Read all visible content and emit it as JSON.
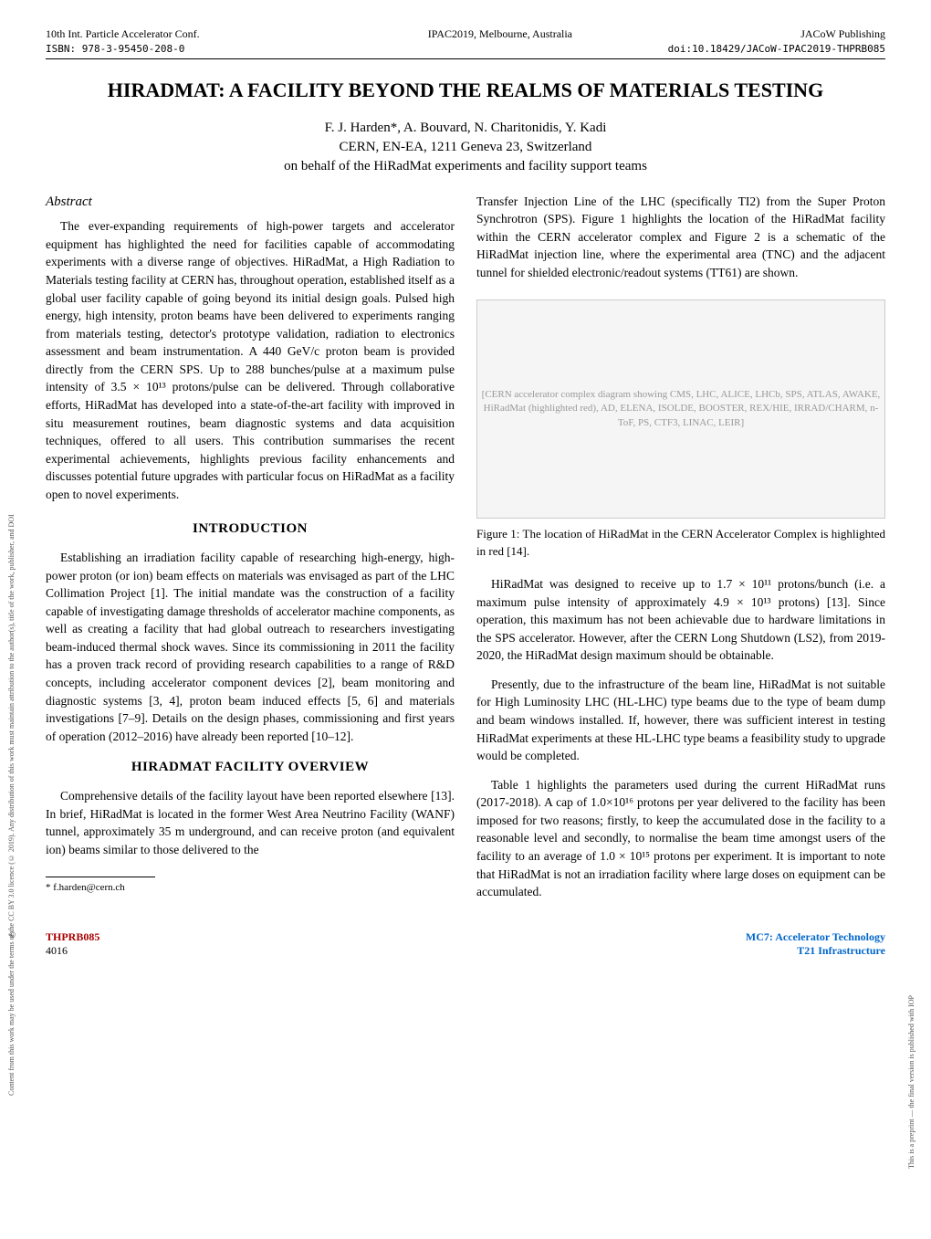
{
  "header": {
    "conf_left": "10th Int. Particle Accelerator Conf.",
    "conf_center": "IPAC2019, Melbourne, Australia",
    "conf_right": "JACoW Publishing",
    "isbn": "ISBN: 978-3-95450-208-0",
    "doi": "doi:10.18429/JACoW-IPAC2019-THPRB085"
  },
  "title": "HIRADMAT: A FACILITY BEYOND THE REALMS OF MATERIALS TESTING",
  "authors": "F. J. Harden*, A. Bouvard, N. Charitonidis, Y. Kadi",
  "affiliation": "CERN, EN-EA, 1211 Geneva 23, Switzerland",
  "behalf": "on behalf of the HiRadMat experiments and facility support teams",
  "abstract_heading": "Abstract",
  "abstract_text": "The ever-expanding requirements of high-power targets and accelerator equipment has highlighted the need for facilities capable of accommodating experiments with a diverse range of objectives. HiRadMat, a High Radiation to Materials testing facility at CERN has, throughout operation, established itself as a global user facility capable of going beyond its initial design goals. Pulsed high energy, high intensity, proton beams have been delivered to experiments ranging from materials testing, detector's prototype validation, radiation to electronics assessment and beam instrumentation. A 440 GeV/c proton beam is provided directly from the CERN SPS. Up to 288 bunches/pulse at a maximum pulse intensity of 3.5 × 10¹³ protons/pulse can be delivered. Through collaborative efforts, HiRadMat has developed into a state-of-the-art facility with improved in situ measurement routines, beam diagnostic systems and data acquisition techniques, offered to all users. This contribution summarises the recent experimental achievements, highlights previous facility enhancements and discusses potential future upgrades with particular focus on HiRadMat as a facility open to novel experiments.",
  "sections": {
    "intro_heading": "INTRODUCTION",
    "intro_p1": "Establishing an irradiation facility capable of researching high-energy, high-power proton (or ion) beam effects on materials was envisaged as part of the LHC Collimation Project [1]. The initial mandate was the construction of a facility capable of investigating damage thresholds of accelerator machine components, as well as creating a facility that had global outreach to researchers investigating beam-induced thermal shock waves. Since its commissioning in 2011 the facility has a proven track record of providing research capabilities to a range of R&D concepts, including accelerator component devices [2], beam monitoring and diagnostic systems [3, 4], proton beam induced effects [5, 6] and materials investigations [7–9]. Details on the design phases, commissioning and first years of operation (2012–2016) have already been reported [10–12].",
    "overview_heading": "HIRADMAT FACILITY OVERVIEW",
    "overview_p1": "Comprehensive details of the facility layout have been reported elsewhere [13]. In brief, HiRadMat is located in the former West Area Neutrino Facility (WANF) tunnel, approximately 35 m underground, and can receive proton (and equivalent ion) beams similar to those delivered to the",
    "right_p1": "Transfer Injection Line of the LHC (specifically TI2) from the Super Proton Synchrotron (SPS). Figure 1 highlights the location of the HiRadMat facility within the CERN accelerator complex and Figure 2 is a schematic of the HiRadMat injection line, where the experimental area (TNC) and the adjacent tunnel for shielded electronic/readout systems (TT61) are shown.",
    "fig1_caption": "Figure 1: The location of HiRadMat in the CERN Accelerator Complex is highlighted in red [14].",
    "right_p2": "HiRadMat was designed to receive up to 1.7 × 10¹¹ protons/bunch (i.e. a maximum pulse intensity of approximately 4.9 × 10¹³ protons) [13]. Since operation, this maximum has not been achievable due to hardware limitations in the SPS accelerator. However, after the CERN Long Shutdown (LS2), from 2019-2020, the HiRadMat design maximum should be obtainable.",
    "right_p3": "Presently, due to the infrastructure of the beam line, HiRadMat is not suitable for High Luminosity LHC (HL-LHC) type beams due to the type of beam dump and beam windows installed. If, however, there was sufficient interest in testing HiRadMat experiments at these HL-LHC type beams a feasibility study to upgrade would be completed.",
    "right_p4": "Table 1 highlights the parameters used during the current HiRadMat runs (2017-2018). A cap of 1.0×10¹⁶ protons per year delivered to the facility has been imposed for two reasons; firstly, to keep the accumulated dose in the facility to a reasonable level and secondly, to normalise the beam time amongst users of the facility to an average of 1.0 × 10¹⁵ protons per experiment. It is important to note that HiRadMat is not an irradiation facility where large doses on equipment can be accumulated."
  },
  "footnote": "* f.harden@cern.ch",
  "footer": {
    "code": "THPRB085",
    "page": "4016",
    "right_top": "MC7: Accelerator Technology",
    "right_bottom": "T21 Infrastructure"
  },
  "side_left": "Content from this work may be used under the terms of the CC BY 3.0 licence (© 2019). Any distribution of this work must maintain attribution to the author(s), title of the work, publisher, and DOI",
  "side_right": "This is a preprint — the final version is published with IOP",
  "figure1": {
    "type": "diagram",
    "placeholder": "[CERN accelerator complex diagram showing CMS, LHC, ALICE, LHCb, SPS, ATLAS, AWAKE, HiRadMat (highlighted red), AD, ELENA, ISOLDE, BOOSTER, REX/HIE, IRRAD/CHARM, n-ToF, PS, CTF3, LINAC, LEIR]",
    "highlight_color": "#cc0000",
    "labels": [
      "CMS",
      "LHC",
      "ALICE",
      "LHCb",
      "SPS",
      "ATLAS",
      "AWAKE",
      "HiRadMat",
      "AD",
      "ELENA",
      "ISOLDE",
      "BOOSTER",
      "REX/HIE",
      "IRRAD/CHARM",
      "n-ToF",
      "PS",
      "CTF3",
      "LEIR"
    ],
    "background_color": "#ffffff"
  }
}
